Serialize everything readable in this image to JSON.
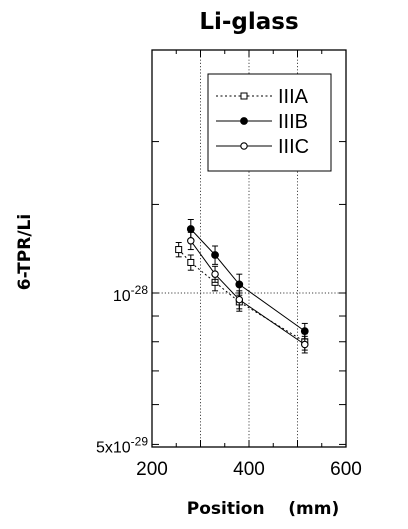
{
  "chart_data": {
    "type": "line",
    "title": "Li-glass",
    "xlabel": "Position    (mm)",
    "ylabel": "6-TPR/Li",
    "xlim": [
      200,
      600
    ],
    "ylim": [
      5e-29,
      2e-28
    ],
    "yscale": "log",
    "grid": true,
    "legend_position": "top-right",
    "x_ticks": [
      {
        "value": 200,
        "label": "200"
      },
      {
        "value": 400,
        "label": "400"
      },
      {
        "value": 600,
        "label": "600"
      }
    ],
    "y_ticks": [
      {
        "value": 1e-28,
        "mantissa": "10",
        "exp": "-28"
      },
      {
        "value": 5e-29,
        "mantissa": "5x10",
        "exp": "-29"
      }
    ],
    "series": [
      {
        "name": "IIIA",
        "marker": "open-square",
        "line": "dotted",
        "x": [
          255,
          280,
          330,
          380,
          515
        ],
        "y": [
          1.22e-28,
          1.15e-28,
          1.05e-28,
          9.6e-29,
          8e-29
        ],
        "err": [
          4e-30,
          4e-30,
          4e-30,
          4e-30,
          3e-30
        ]
      },
      {
        "name": "IIIB",
        "marker": "filled-circle",
        "line": "solid",
        "x": [
          280,
          330,
          380,
          515
        ],
        "y": [
          1.34e-28,
          1.19e-28,
          1.04e-28,
          8.4e-29
        ],
        "err": [
          6e-30,
          5e-30,
          5e-30,
          3e-30
        ]
      },
      {
        "name": "IIIC",
        "marker": "open-circle",
        "line": "solid",
        "x": [
          280,
          330,
          380,
          515
        ],
        "y": [
          1.27e-28,
          1.09e-28,
          9.7e-29,
          7.9e-29
        ],
        "err": [
          5e-30,
          4e-30,
          4e-30,
          3e-30
        ]
      }
    ]
  }
}
